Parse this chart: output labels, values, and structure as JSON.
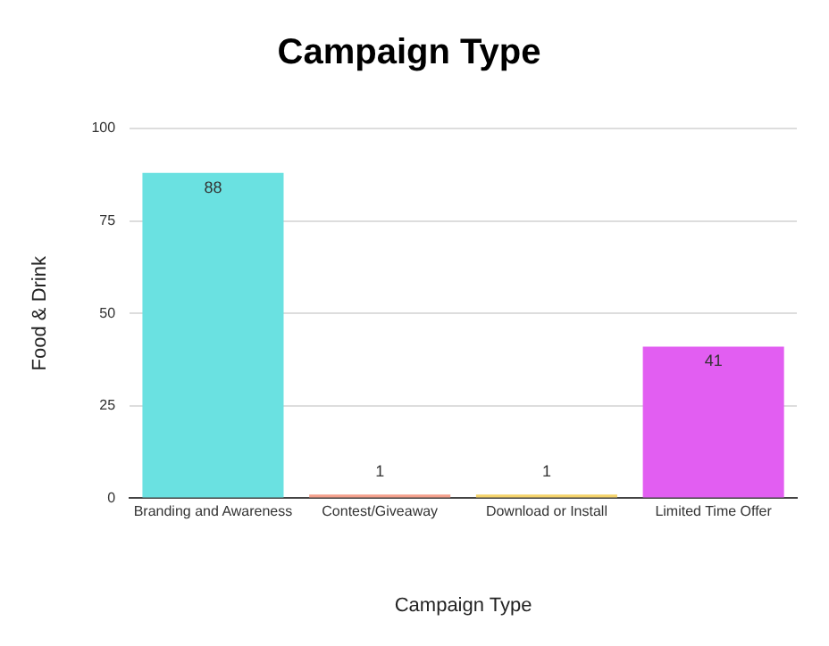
{
  "chart_data": {
    "type": "bar",
    "title": "Campaign Type",
    "xlabel": "Campaign Type",
    "ylabel": "Food & Drink",
    "categories": [
      "Branding and Awareness",
      "Contest/Giveaway",
      "Download or Install",
      "Limited Time Offer"
    ],
    "values": [
      88,
      1,
      1,
      41
    ],
    "colors": [
      "#6ae1e1",
      "#f4a08c",
      "#f5d36a",
      "#e25ef2"
    ],
    "ylim": [
      0,
      100
    ],
    "yticks": [
      0,
      25,
      50,
      75,
      100
    ],
    "grid": "y",
    "legend": false,
    "data_labels": true
  }
}
